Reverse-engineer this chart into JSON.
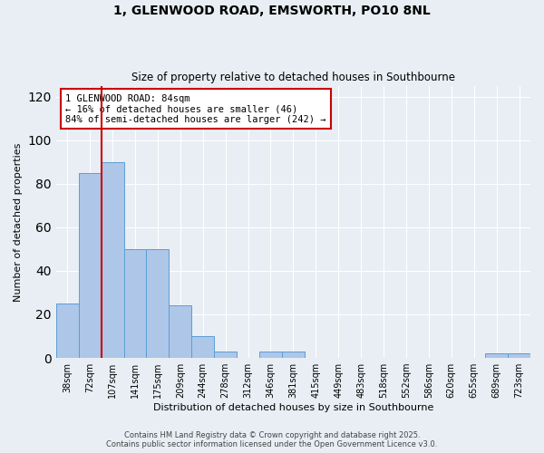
{
  "title1": "1, GLENWOOD ROAD, EMSWORTH, PO10 8NL",
  "title2": "Size of property relative to detached houses in Southbourne",
  "xlabel": "Distribution of detached houses by size in Southbourne",
  "ylabel": "Number of detached properties",
  "bar_labels": [
    "38sqm",
    "72sqm",
    "107sqm",
    "141sqm",
    "175sqm",
    "209sqm",
    "244sqm",
    "278sqm",
    "312sqm",
    "346sqm",
    "381sqm",
    "415sqm",
    "449sqm",
    "483sqm",
    "518sqm",
    "552sqm",
    "586sqm",
    "620sqm",
    "655sqm",
    "689sqm",
    "723sqm"
  ],
  "bar_values": [
    25,
    85,
    90,
    50,
    50,
    24,
    10,
    3,
    0,
    3,
    3,
    0,
    0,
    0,
    0,
    0,
    0,
    0,
    0,
    2,
    2
  ],
  "annotation_title": "1 GLENWOOD ROAD: 84sqm",
  "annotation_line1": "← 16% of detached houses are smaller (46)",
  "annotation_line2": "84% of semi-detached houses are larger (242) →",
  "bar_color": "#aec6e8",
  "bar_edge_color": "#5a9fd4",
  "line_color": "#cc0000",
  "annotation_box_color": "#ffffff",
  "annotation_box_edge": "#cc0000",
  "bg_color": "#e8eef4",
  "plot_bg": "#e8eef4",
  "footer1": "Contains HM Land Registry data © Crown copyright and database right 2025.",
  "footer2": "Contains public sector information licensed under the Open Government Licence v3.0.",
  "ylim": [
    0,
    125
  ],
  "yticks": [
    0,
    20,
    40,
    60,
    80,
    100,
    120
  ],
  "vline_x": 1.5
}
